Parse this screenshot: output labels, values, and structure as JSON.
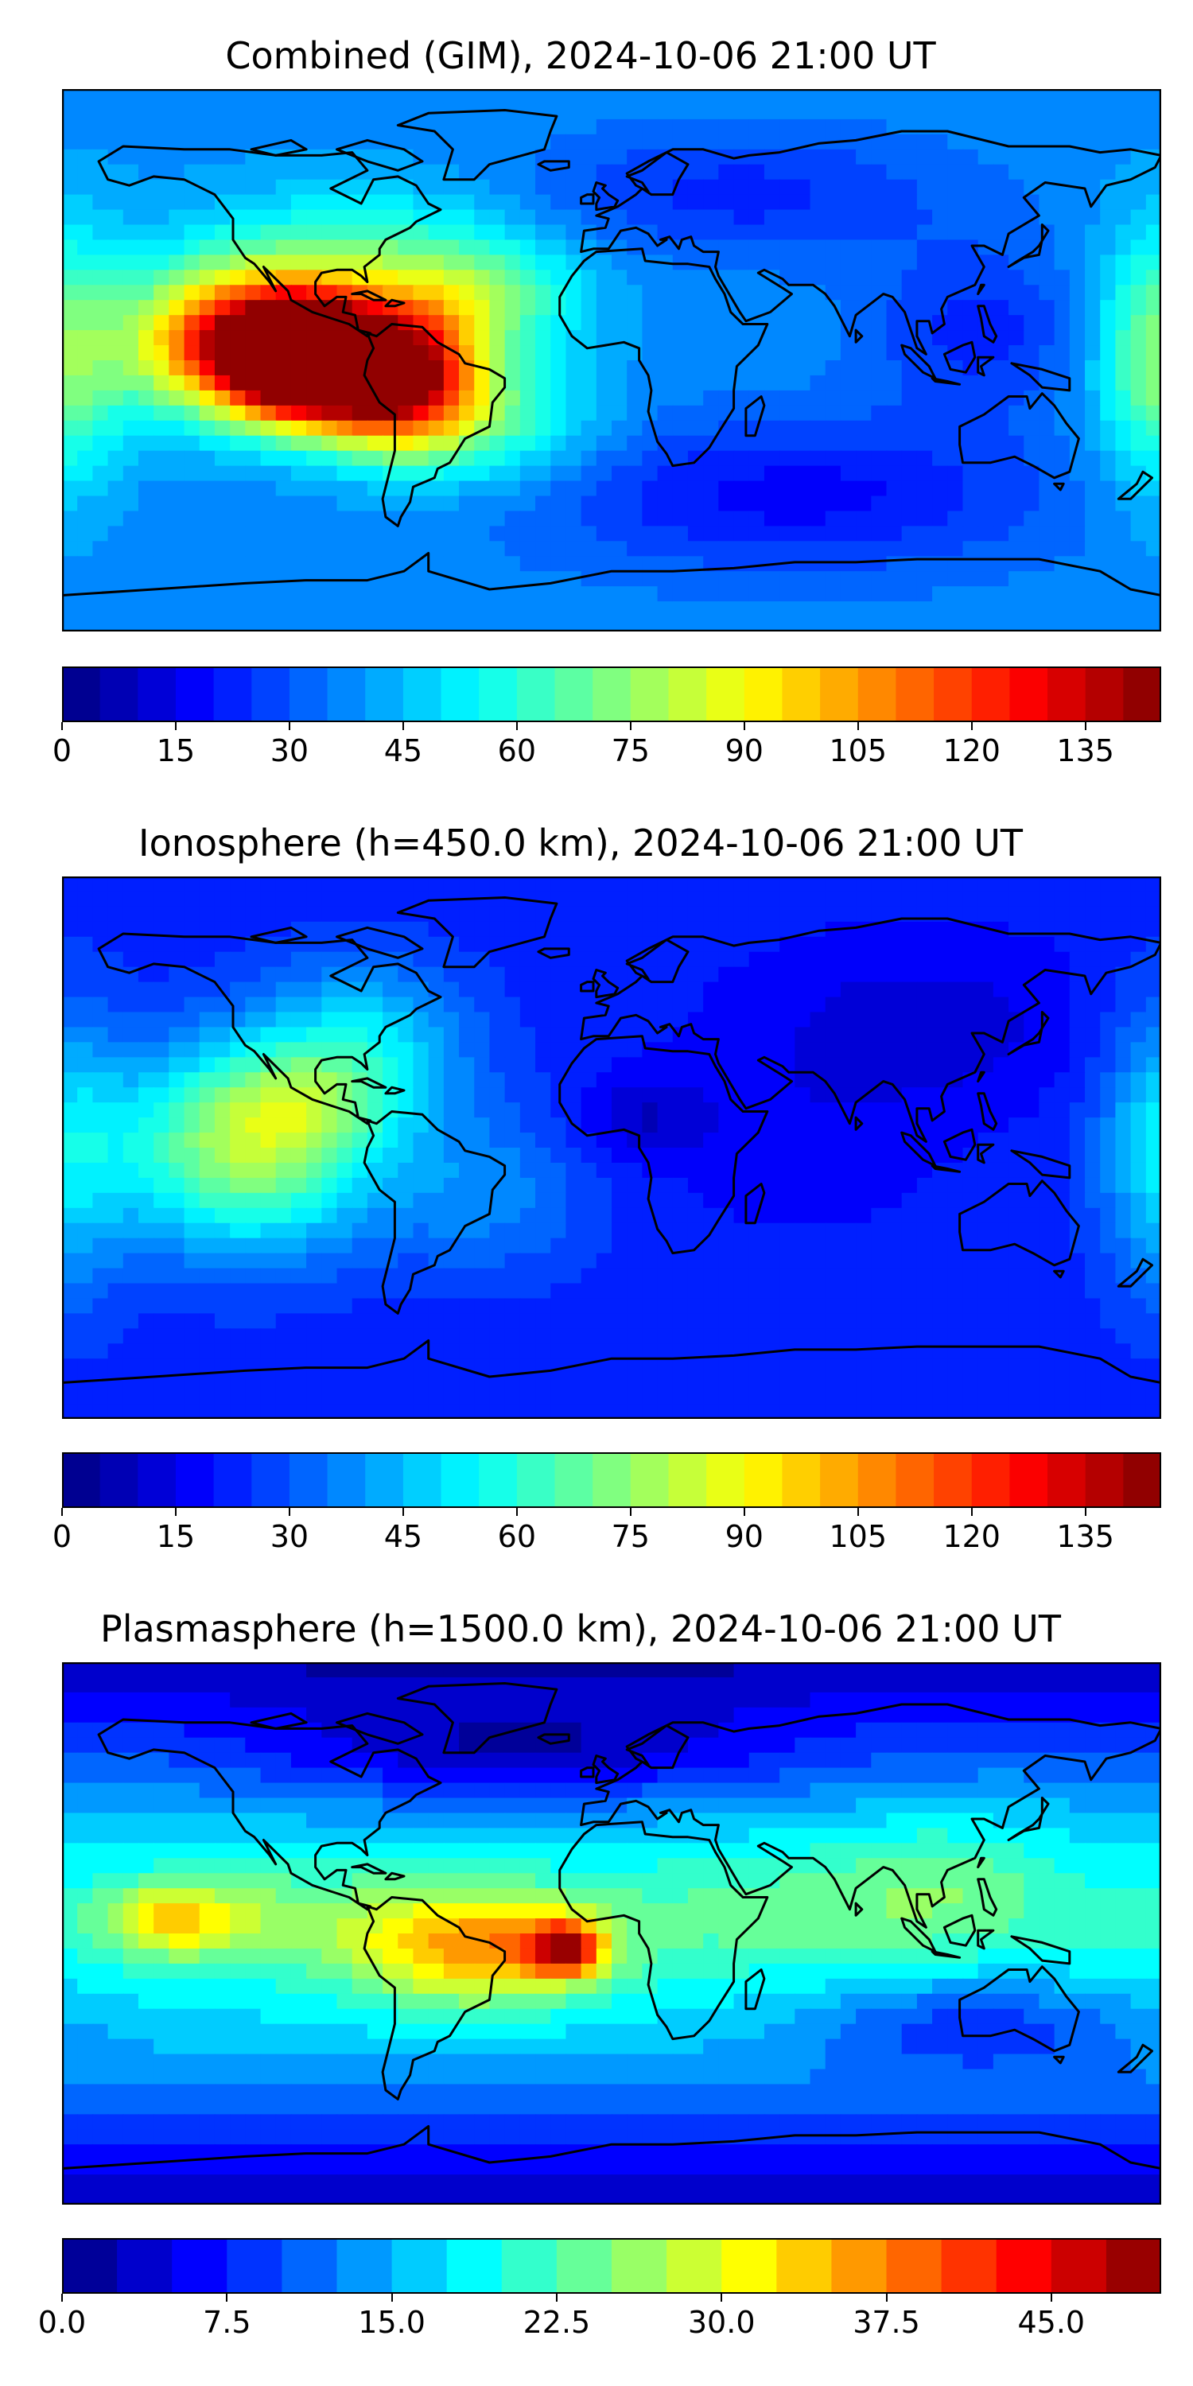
{
  "chart_data": [
    {
      "type": "heatmap",
      "title": "Combined (GIM), 2024-10-06 21:00 UT",
      "projection": "plate-carree world map with coastlines",
      "colormap": "jet",
      "colorbar": {
        "min": 0,
        "max": 145,
        "step": 5,
        "tick_labels": [
          "0",
          "15",
          "30",
          "45",
          "60",
          "75",
          "90",
          "105",
          "120",
          "135"
        ],
        "tick_values": [
          0,
          15,
          30,
          45,
          60,
          75,
          90,
          105,
          120,
          135
        ]
      },
      "features": [
        {
          "lon": -100,
          "lat": 0,
          "value": 120,
          "sx": 16,
          "sy": 14
        },
        {
          "lon": -70,
          "lat": -5,
          "value": 105,
          "sx": 18,
          "sy": 16
        },
        {
          "lon": -125,
          "lat": 5,
          "value": 85,
          "sx": 22,
          "sy": 16
        },
        {
          "lon": -80,
          "lat": 30,
          "value": 30,
          "sx": 40,
          "sy": 18
        },
        {
          "lon": -40,
          "lat": -20,
          "value": 25,
          "sx": 25,
          "sy": 15
        },
        {
          "lon": -40,
          "lat": 20,
          "value": 20,
          "sx": 20,
          "sy": 12
        },
        {
          "lon": 120,
          "lat": 10,
          "value": -15,
          "sx": 25,
          "sy": 20
        },
        {
          "lon": 60,
          "lat": -45,
          "value": -20,
          "sx": 60,
          "sy": 18
        },
        {
          "lon": 40,
          "lat": 55,
          "value": -15,
          "sx": 50,
          "sy": 15
        },
        {
          "lon": 180,
          "lat": 0,
          "value": 35,
          "sx": 15,
          "sy": 30
        }
      ],
      "base_value": 38,
      "lat_decay": 0
    },
    {
      "type": "heatmap",
      "title": "Ionosphere  (h=450.0 km), 2024-10-06 21:00 UT",
      "projection": "plate-carree world map with coastlines",
      "colormap": "jet",
      "colorbar": {
        "min": 0,
        "max": 145,
        "step": 5,
        "tick_labels": [
          "0",
          "15",
          "30",
          "45",
          "60",
          "75",
          "90",
          "105",
          "120",
          "135"
        ],
        "tick_values": [
          0,
          15,
          30,
          45,
          60,
          75,
          90,
          105,
          120,
          135
        ]
      },
      "features": [
        {
          "lon": -120,
          "lat": 0,
          "value": 55,
          "sx": 30,
          "sy": 24
        },
        {
          "lon": -100,
          "lat": 15,
          "value": 15,
          "sx": 20,
          "sy": 12
        },
        {
          "lon": -80,
          "lat": 35,
          "value": 25,
          "sx": 25,
          "sy": 20
        },
        {
          "lon": -40,
          "lat": -15,
          "value": 15,
          "sx": 25,
          "sy": 20
        },
        {
          "lon": 10,
          "lat": 10,
          "value": -12,
          "sx": 15,
          "sy": 10
        },
        {
          "lon": 60,
          "lat": 0,
          "value": -5,
          "sx": 30,
          "sy": 20
        },
        {
          "lon": 100,
          "lat": 40,
          "value": -10,
          "sx": 40,
          "sy": 20
        },
        {
          "lon": 180,
          "lat": 0,
          "value": 25,
          "sx": 15,
          "sy": 35
        }
      ],
      "base_value": 22,
      "lat_decay": 0
    },
    {
      "type": "heatmap",
      "title": "Plasmasphere (h=1500.0 km), 2024-10-06 21:00 UT",
      "projection": "plate-carree world map with coastlines",
      "colormap": "jet",
      "colorbar": {
        "min": 0,
        "max": 50,
        "step": 2.5,
        "tick_labels": [
          "0.0",
          "7.5",
          "15.0",
          "22.5",
          "30.0",
          "37.5",
          "45.0"
        ],
        "tick_values": [
          0,
          7.5,
          15,
          22.5,
          30,
          37.5,
          45
        ]
      },
      "features": [
        {
          "lon": -15,
          "lat": -5,
          "value": 22,
          "sx": 8,
          "sy": 6
        },
        {
          "lon": -25,
          "lat": -5,
          "value": 10,
          "sx": 20,
          "sy": 12
        },
        {
          "lon": -55,
          "lat": -5,
          "value": 12,
          "sx": 22,
          "sy": 14
        },
        {
          "lon": -145,
          "lat": 5,
          "value": 12,
          "sx": 15,
          "sy": 8
        },
        {
          "lon": -110,
          "lat": 5,
          "value": 6,
          "sx": 30,
          "sy": 12
        },
        {
          "lon": 60,
          "lat": 10,
          "value": 4,
          "sx": 50,
          "sy": 15
        },
        {
          "lon": 110,
          "lat": 20,
          "value": 4,
          "sx": 25,
          "sy": 15
        },
        {
          "lon": -30,
          "lat": 60,
          "value": -8,
          "sx": 60,
          "sy": 12
        },
        {
          "lon": 120,
          "lat": -30,
          "value": -8,
          "sx": 40,
          "sy": 12
        }
      ],
      "base_value": 20,
      "lat_decay": 18
    }
  ]
}
